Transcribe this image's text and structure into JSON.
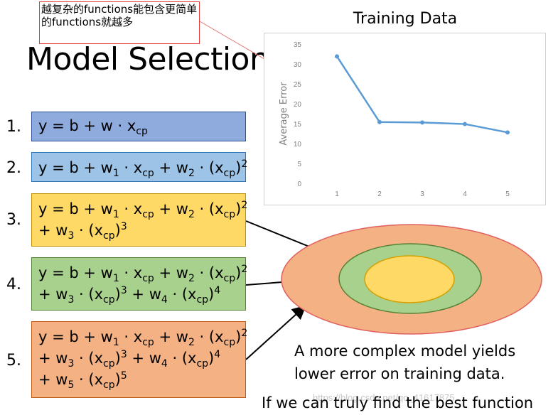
{
  "annotation": {
    "text": "越复杂的functions能包含更简单的functions就越多"
  },
  "slide_title": "Model Selection",
  "models": [
    {
      "number": "1."
    },
    {
      "number": "2."
    },
    {
      "number": "3."
    },
    {
      "number": "4."
    },
    {
      "number": "5."
    }
  ],
  "captions": {
    "line1": "A more complex model yields",
    "line2": "lower error on training data.",
    "line3": "If we can truly find the best function"
  },
  "watermark": "https://blog.csdn.net/qq_41617875",
  "colors": {
    "ellipse_outer": "#f4b183",
    "ellipse_middle": "#a9d18e",
    "ellipse_inner": "#ffd966",
    "chart_line": "#5b9bd5",
    "annotation_border": "#e53935"
  },
  "chart_data": {
    "type": "line",
    "title": "Training Data",
    "xlabel": "",
    "ylabel": "Average Error",
    "x": [
      1,
      2,
      3,
      4,
      5
    ],
    "xticks": [
      "1",
      "2",
      "3",
      "4",
      "5"
    ],
    "yticks": [
      "0",
      "5",
      "10",
      "15",
      "20",
      "25",
      "30",
      "35"
    ],
    "ylim": [
      0,
      35
    ],
    "series": [
      {
        "values": [
          31.9,
          15.4,
          15.3,
          14.9,
          12.8
        ]
      }
    ],
    "grid": false,
    "legend": "none"
  }
}
